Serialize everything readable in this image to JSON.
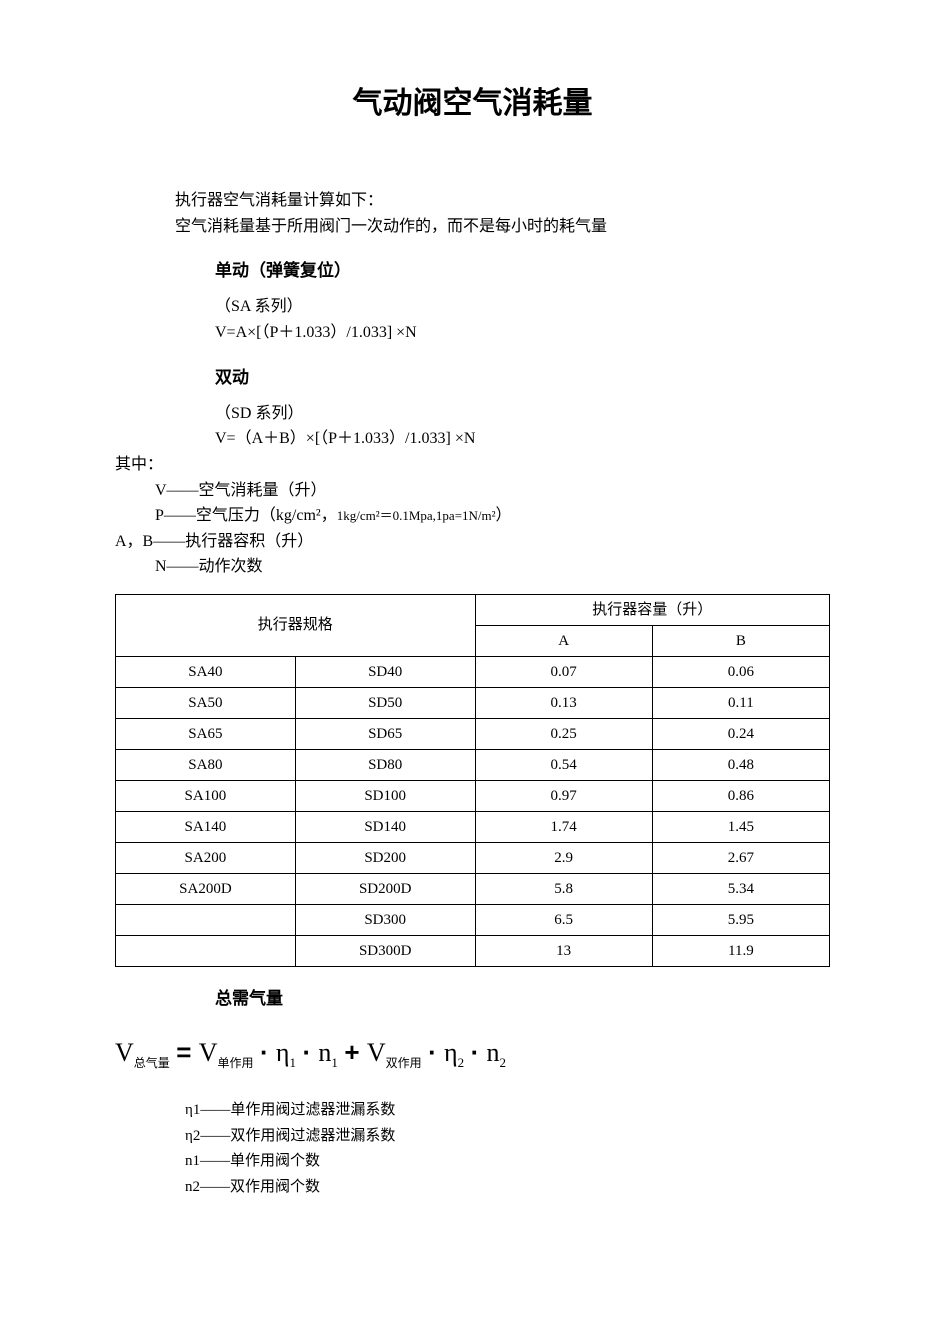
{
  "title": "气动阀空气消耗量",
  "intro": {
    "l1": "执行器空气消耗量计算如下：",
    "l2": "空气消耗量基于所用阀门一次动作的，而不是每小时的耗气量"
  },
  "single": {
    "heading": "单动（弹簧复位）",
    "series": "（SA 系列）",
    "formula": "V=A×[（P＋1.033）/1.033]  ×N"
  },
  "double": {
    "heading": "双动",
    "series": "（SD 系列）",
    "formula": "V=（A＋B）×[（P＋1.033）/1.033]  ×N"
  },
  "where": {
    "lead": "其中：",
    "v": "V——空气消耗量（升）",
    "p_pref": "P——空气压力（kg/cm²，",
    "p_small": "1kg/cm²＝0.1Mpa,1pa=1N/m²",
    "p_suff": "）",
    "ab": "A，B——执行器容积（升）",
    "n": "N——动作次数"
  },
  "table": {
    "hdr_spec": "执行器规格",
    "hdr_cap": "执行器容量（升）",
    "hdr_a": "A",
    "hdr_b": "B",
    "rows": [
      {
        "sa": "SA40",
        "sd": "SD40",
        "a": "0.07",
        "b": "0.06"
      },
      {
        "sa": "SA50",
        "sd": "SD50",
        "a": "0.13",
        "b": "0.11"
      },
      {
        "sa": "SA65",
        "sd": "SD65",
        "a": "0.25",
        "b": "0.24"
      },
      {
        "sa": "SA80",
        "sd": "SD80",
        "a": "0.54",
        "b": "0.48"
      },
      {
        "sa": "SA100",
        "sd": "SD100",
        "a": "0.97",
        "b": "0.86"
      },
      {
        "sa": "SA140",
        "sd": "SD140",
        "a": "1.74",
        "b": "1.45"
      },
      {
        "sa": "SA200",
        "sd": "SD200",
        "a": "2.9",
        "b": "2.67"
      },
      {
        "sa": "SA200D",
        "sd": "SD200D",
        "a": "5.8",
        "b": "5.34"
      },
      {
        "sa": "",
        "sd": "SD300",
        "a": "6.5",
        "b": "5.95"
      },
      {
        "sa": "",
        "sd": "SD300D",
        "a": "13",
        "b": "11.9"
      }
    ]
  },
  "total": {
    "heading": "总需气量",
    "v": "V",
    "sub_total": "总气量",
    "eq": " = ",
    "sub_single": "单作用",
    "dot": " · ",
    "eta": "η",
    "n": "n",
    "plus": " + ",
    "sub_double": "双作用",
    "s1": "1",
    "s2": "2"
  },
  "legend": {
    "l1": "η1——单作用阀过滤器泄漏系数",
    "l2": "η2——双作用阀过滤器泄漏系数",
    "l3": "n1——单作用阀个数",
    "l4": "n2——双作用阀个数"
  },
  "style": {
    "page_bg": "#ffffff",
    "text_color": "#000000",
    "border_color": "#000000",
    "title_fontsize": 30,
    "body_fontsize": 16,
    "table_fontsize": 15,
    "formula_fontsize": 26
  }
}
